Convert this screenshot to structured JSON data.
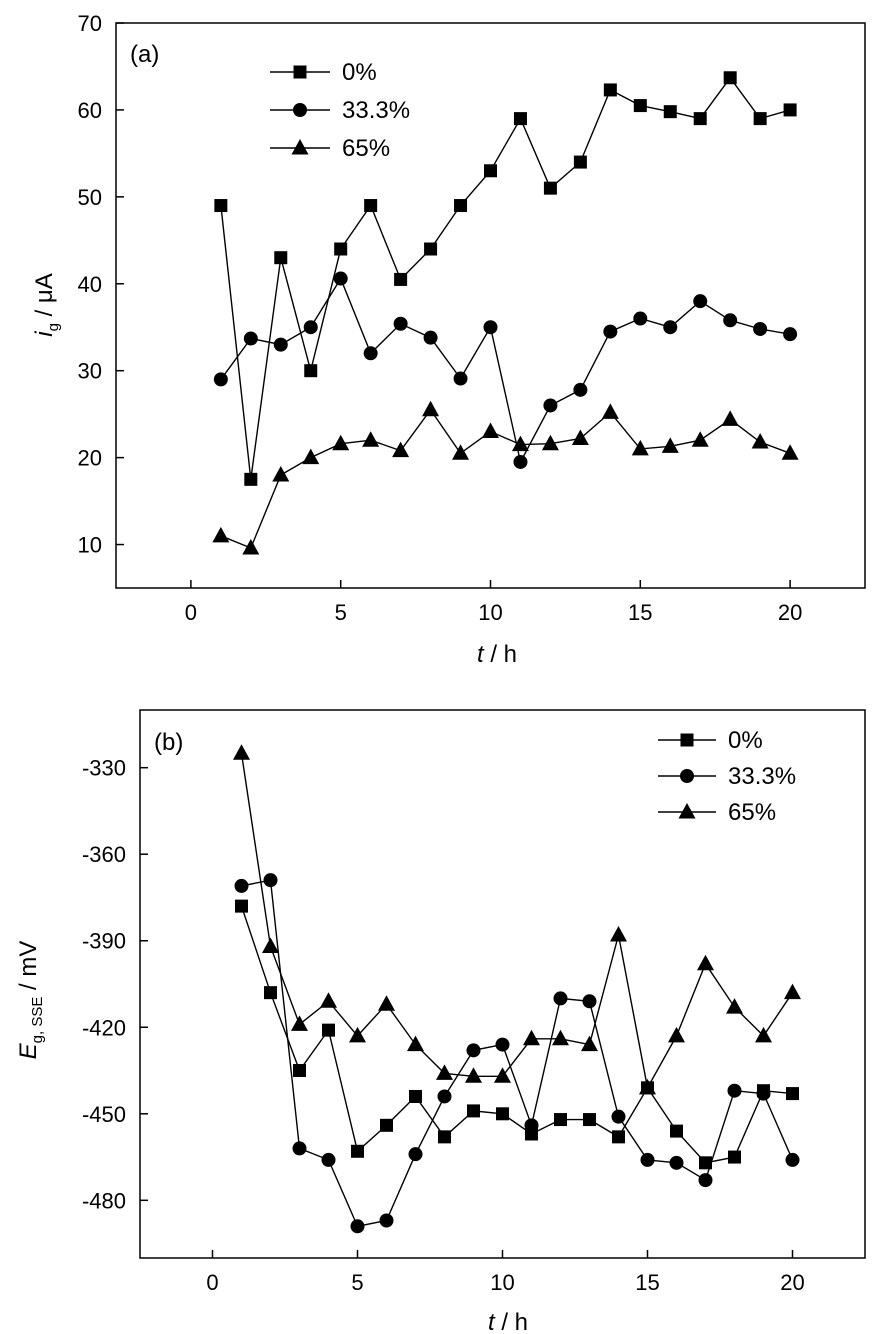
{
  "chart_data": [
    {
      "type": "line",
      "panel_label": "(a)",
      "xlabel_italic": "t",
      "xlabel_rest": " / h",
      "ylabel_main": "i",
      "ylabel_sub": "g",
      "ylabel_rest": " / μA",
      "xlim": [
        -2.5,
        22.5
      ],
      "ylim": [
        5,
        70
      ],
      "xticks": [
        0,
        5,
        10,
        15,
        20
      ],
      "yticks": [
        10,
        20,
        30,
        40,
        50,
        60,
        70
      ],
      "legend_position": "top-left",
      "x": [
        1,
        2,
        3,
        4,
        5,
        6,
        7,
        8,
        9,
        10,
        11,
        12,
        13,
        14,
        15,
        16,
        17,
        18,
        19,
        20
      ],
      "series": [
        {
          "name": "0%",
          "marker": "square",
          "values": [
            49,
            17.5,
            43,
            30,
            44,
            49,
            40.5,
            44,
            49,
            53,
            59,
            51,
            54,
            62.3,
            60.5,
            59.8,
            59,
            63.7,
            59,
            60
          ]
        },
        {
          "name": "33.3%",
          "marker": "circle",
          "values": [
            29,
            33.7,
            33,
            35,
            40.6,
            32,
            35.4,
            33.8,
            29.1,
            35,
            19.5,
            26,
            27.8,
            34.5,
            36,
            35,
            38,
            35.8,
            34.8,
            34.2
          ]
        },
        {
          "name": "65%",
          "marker": "triangle",
          "values": [
            11,
            9.6,
            18,
            20,
            21.6,
            22,
            20.8,
            25.5,
            20.5,
            23,
            21.5,
            21.6,
            22.2,
            25.2,
            21,
            21.3,
            22,
            24.4,
            21.8,
            20.5
          ]
        }
      ]
    },
    {
      "type": "line",
      "panel_label": "(b)",
      "xlabel_italic": "t",
      "xlabel_rest": " / h",
      "ylabel_main": "E",
      "ylabel_sub": "g, SSE",
      "ylabel_rest": " / mV",
      "xlim": [
        -2.5,
        22.5
      ],
      "ylim": [
        -500,
        -310
      ],
      "xticks": [
        0,
        5,
        10,
        15,
        20
      ],
      "yticks": [
        -330,
        -360,
        -390,
        -420,
        -450,
        -480
      ],
      "legend_position": "top-right",
      "x": [
        1,
        2,
        3,
        4,
        5,
        6,
        7,
        8,
        9,
        10,
        11,
        12,
        13,
        14,
        15,
        16,
        17,
        18,
        19,
        20
      ],
      "series": [
        {
          "name": "0%",
          "marker": "square",
          "values": [
            -378,
            -408,
            -435,
            -421,
            -463,
            -454,
            -444,
            -458,
            -449,
            -450,
            -457,
            -452,
            -452,
            -458,
            -441,
            -456,
            -467,
            -465,
            -442,
            -443
          ]
        },
        {
          "name": "33.3%",
          "marker": "circle",
          "values": [
            -371,
            -369,
            -462,
            -466,
            -489,
            -487,
            -464,
            -444,
            -428,
            -426,
            -454,
            -410,
            -411,
            -451,
            -466,
            -467,
            -473,
            -442,
            -443,
            -466
          ]
        },
        {
          "name": "65%",
          "marker": "triangle",
          "values": [
            -325,
            -392,
            -419,
            -411,
            -423,
            -412,
            -426,
            -436,
            -437,
            -437,
            -424,
            -424,
            -426,
            -388,
            -441,
            -423,
            -398,
            -413,
            -423,
            -408
          ]
        }
      ]
    }
  ]
}
